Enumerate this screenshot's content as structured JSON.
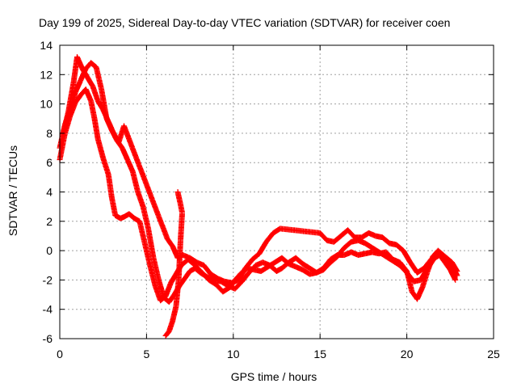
{
  "chart_data": {
    "type": "scatter",
    "title": "Day 199 of 2025, Sidereal Day-to-day VTEC variation (SDTVAR) for receiver coen",
    "xlabel": "GPS time / hours",
    "ylabel": "SDTVAR / TECUs",
    "xlim": [
      0,
      25
    ],
    "ylim": [
      -6,
      14
    ],
    "xticks": [
      0,
      5,
      10,
      15,
      20,
      25
    ],
    "yticks": [
      -6,
      -4,
      -2,
      0,
      2,
      4,
      6,
      8,
      10,
      12,
      14
    ],
    "grid": true,
    "marker": "+",
    "color": "#ff0000",
    "series": [
      {
        "name": "trace-1",
        "x": [
          0.0,
          0.3,
          0.6,
          0.9,
          1.2,
          1.5,
          1.8,
          2.0,
          2.2,
          2.5,
          2.8,
          3.0,
          3.2,
          3.5,
          3.7,
          4.0,
          4.3,
          4.6,
          4.9,
          5.2,
          5.5,
          5.8,
          6.1,
          6.4,
          6.7,
          7.0,
          7.4,
          7.8,
          8.2,
          8.6,
          9.0,
          9.4,
          9.8,
          10.1,
          10.4,
          10.8,
          11.2,
          11.6,
          12.0,
          12.4,
          12.8,
          13.2,
          13.6,
          14.0,
          14.4,
          14.8,
          15.2,
          15.6,
          16.0,
          16.4,
          16.8,
          17.2,
          17.6,
          18.0,
          18.4,
          18.8,
          19.2,
          19.6,
          20.0,
          20.3,
          20.6,
          20.9,
          21.2,
          21.5,
          21.8,
          22.1,
          22.4,
          22.7,
          22.9
        ],
        "y": [
          6.2,
          8.0,
          9.2,
          10.1,
          10.6,
          11.0,
          10.2,
          9.0,
          7.6,
          6.3,
          5.2,
          3.6,
          2.4,
          2.2,
          2.3,
          2.5,
          2.2,
          2.0,
          0.5,
          -1.0,
          -2.4,
          -3.4,
          -3.1,
          -2.2,
          -1.6,
          -1.0,
          -0.6,
          -1.0,
          -1.5,
          -2.0,
          -2.3,
          -2.8,
          -2.5,
          -2.0,
          -1.6,
          -1.2,
          -1.3,
          -1.4,
          -1.1,
          -0.8,
          -0.5,
          -0.9,
          -1.1,
          -1.3,
          -1.6,
          -1.5,
          -1.2,
          -0.6,
          -0.3,
          -0.3,
          -0.1,
          -0.3,
          -0.2,
          -0.1,
          -0.2,
          -0.1,
          -0.6,
          -0.8,
          -1.4,
          -2.8,
          -3.3,
          -2.5,
          -1.4,
          -0.4,
          0.0,
          -0.3,
          -0.7,
          -1.2,
          -1.7
        ]
      },
      {
        "name": "trace-2",
        "x": [
          0.0,
          0.3,
          0.6,
          0.9,
          1.2,
          1.5,
          1.8,
          2.1,
          2.4,
          2.7,
          3.0,
          3.3,
          3.6,
          3.9,
          4.2,
          4.5,
          4.8,
          5.1,
          5.4,
          5.7,
          6.0,
          6.3,
          6.6,
          6.9,
          7.2,
          7.5,
          7.8,
          8.1,
          8.5,
          8.9,
          9.3,
          9.7,
          10.1,
          10.5,
          10.9,
          11.3,
          11.7,
          12.1,
          12.5,
          12.8,
          13.2,
          13.6,
          14.0,
          14.4,
          14.8,
          15.2,
          15.6,
          16.0,
          16.4,
          16.8,
          17.2,
          17.6,
          18.0,
          18.4,
          18.8,
          19.2,
          19.6,
          20.0,
          20.4,
          20.8,
          21.2,
          21.6,
          21.9,
          22.2,
          22.5,
          22.8
        ],
        "y": [
          7.0,
          8.6,
          9.6,
          10.8,
          11.6,
          12.4,
          12.8,
          12.5,
          11.0,
          9.0,
          8.2,
          7.5,
          7.0,
          6.2,
          5.4,
          4.0,
          3.0,
          1.5,
          -0.5,
          -2.0,
          -3.2,
          -3.5,
          -3.0,
          -2.4,
          -1.9,
          -1.4,
          -1.2,
          -1.5,
          -1.8,
          -2.0,
          -2.1,
          -2.4,
          -2.6,
          -2.1,
          -1.5,
          -1.0,
          -0.8,
          -1.0,
          -1.4,
          -1.2,
          -0.8,
          -0.5,
          -0.9,
          -1.2,
          -1.5,
          -1.3,
          -0.8,
          -0.4,
          0.2,
          0.6,
          0.7,
          0.5,
          0.2,
          -0.1,
          -0.4,
          -0.7,
          -1.0,
          -1.5,
          -2.1,
          -2.0,
          -1.2,
          -0.5,
          -0.3,
          -0.8,
          -1.3,
          -2.0
        ]
      },
      {
        "name": "trace-3",
        "x": [
          0.2,
          0.5,
          0.8,
          1.0,
          1.3,
          1.6,
          1.9,
          2.2,
          2.5,
          2.8,
          3.1,
          3.4,
          3.7,
          6.2,
          6.5,
          6.8,
          7.1,
          7.5,
          7.9,
          8.3,
          8.7,
          9.1,
          9.5,
          9.9,
          10.3,
          10.7,
          11.1,
          11.5,
          11.9,
          12.3,
          12.7,
          15.0,
          15.4,
          15.8,
          16.2,
          16.6,
          17.0,
          17.4,
          17.8,
          18.2,
          18.6,
          19.0,
          19.4,
          19.8,
          20.2,
          20.6,
          21.0,
          21.4,
          21.8,
          22.2,
          22.6,
          22.9
        ],
        "y": [
          8.0,
          9.5,
          11.5,
          13.2,
          12.4,
          11.8,
          11.2,
          10.2,
          9.6,
          8.8,
          8.0,
          7.4,
          8.5,
          0.8,
          0.3,
          -0.5,
          -0.3,
          -0.5,
          -0.8,
          -1.0,
          -1.6,
          -1.9,
          -2.1,
          -2.2,
          -2.0,
          -1.2,
          -0.6,
          -0.2,
          0.6,
          1.2,
          1.5,
          1.2,
          0.7,
          0.6,
          1.0,
          1.4,
          0.9,
          0.9,
          1.2,
          1.0,
          0.9,
          0.5,
          0.4,
          0.0,
          -0.8,
          -1.5,
          -1.2,
          -0.6,
          -0.2,
          -0.4,
          -0.8,
          -1.4
        ]
      },
      {
        "name": "trace-4",
        "x": [
          6.1,
          6.3,
          6.5,
          6.7,
          6.85,
          6.95,
          7.05
        ],
        "y": [
          -5.8,
          -5.5,
          -4.8,
          -3.8,
          -2.0,
          0.5,
          2.5
        ]
      },
      {
        "name": "trace-5",
        "x": [
          6.8,
          6.95,
          7.05
        ],
        "y": [
          4.0,
          3.2,
          2.6
        ]
      }
    ]
  }
}
